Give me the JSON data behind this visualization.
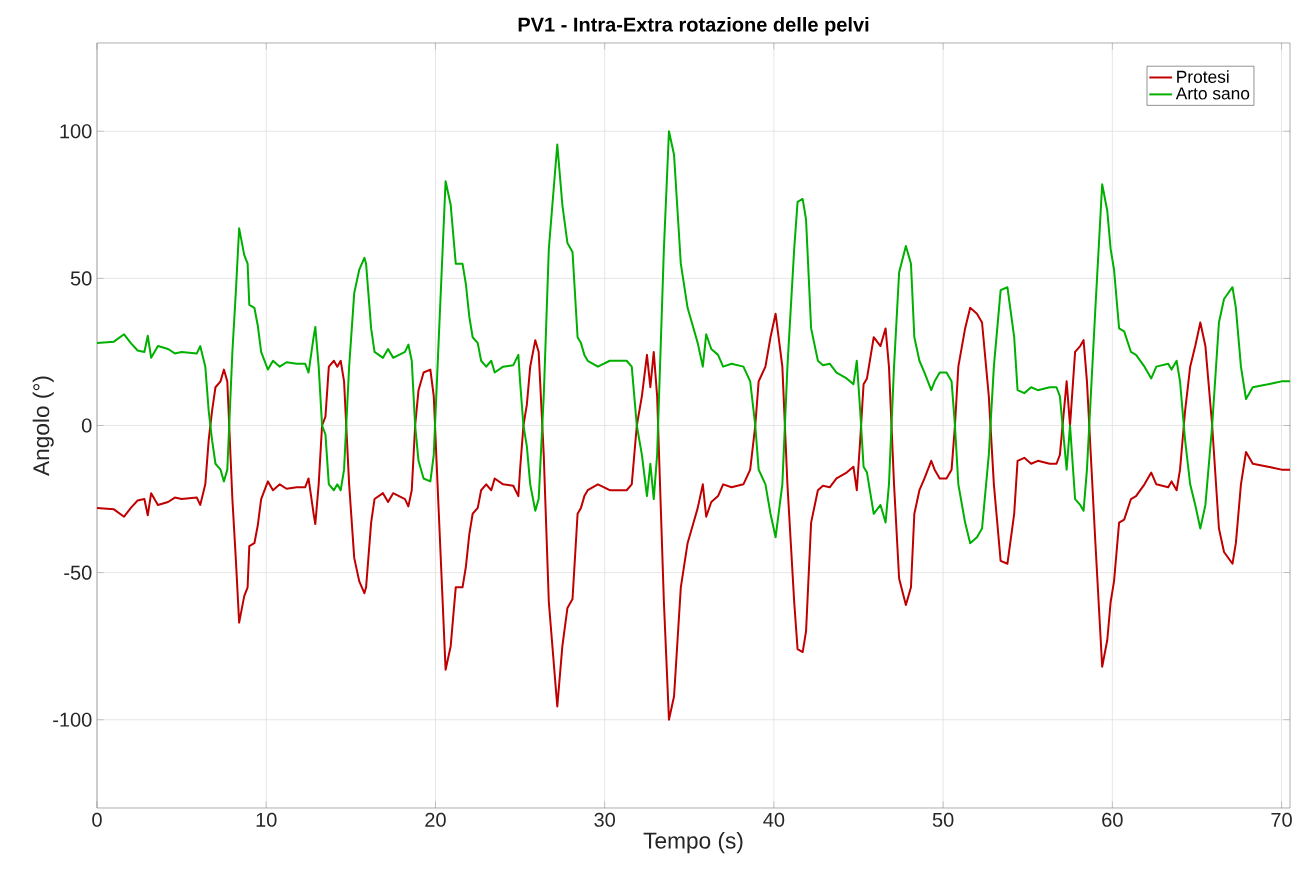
{
  "chart_data": {
    "type": "line",
    "title": "PV1 - Intra-Extra rotazione delle pelvi",
    "xlabel": "Tempo (s)",
    "ylabel": "Angolo (°)",
    "x": [
      0,
      1.0,
      1.6,
      2.0,
      2.4,
      2.8,
      3.0,
      3.2,
      3.6,
      4.2,
      4.6,
      5.0,
      5.9,
      6.1,
      6.4,
      6.6,
      6.8,
      7.0,
      7.3,
      7.5,
      7.7,
      8.0,
      8.2,
      8.4,
      8.7,
      8.9,
      9.0,
      9.3,
      9.5,
      9.7,
      9.9,
      10.1,
      10.4,
      10.8,
      11.2,
      11.8,
      12.3,
      12.5,
      12.8,
      12.9,
      13.1,
      13.3,
      13.5,
      13.7,
      14.0,
      14.2,
      14.4,
      14.6,
      14.9,
      15.2,
      15.5,
      15.8,
      15.9,
      16.2,
      16.4,
      16.9,
      17.2,
      17.5,
      18.2,
      18.4,
      18.6,
      18.8,
      19.0,
      19.3,
      19.7,
      19.9,
      20.2,
      20.6,
      20.9,
      21.2,
      21.6,
      21.8,
      22.0,
      22.2,
      22.5,
      22.7,
      23.0,
      23.3,
      23.5,
      24.0,
      24.6,
      24.9,
      25.0,
      25.2,
      25.4,
      25.6,
      25.9,
      26.1,
      26.4,
      26.7,
      27.2,
      27.5,
      27.8,
      28.1,
      28.4,
      28.6,
      28.8,
      29.0,
      29.6,
      30.3,
      31.3,
      31.6,
      31.9,
      32.2,
      32.5,
      32.7,
      32.9,
      33.1,
      33.5,
      33.8,
      34.1,
      34.5,
      34.9,
      35.1,
      35.5,
      35.8,
      36.0,
      36.3,
      36.7,
      37.0,
      37.5,
      38.2,
      38.6,
      38.9,
      39.1,
      39.5,
      39.8,
      40.1,
      40.5,
      40.8,
      41.2,
      41.4,
      41.7,
      41.9,
      42.2,
      42.6,
      42.9,
      43.3,
      43.7,
      44.3,
      44.7,
      44.9,
      45.1,
      45.3,
      45.5,
      45.9,
      46.3,
      46.6,
      46.8,
      47.1,
      47.4,
      47.8,
      48.1,
      48.3,
      48.6,
      48.9,
      49.3,
      49.5,
      49.8,
      50.2,
      50.5,
      50.7,
      50.9,
      51.3,
      51.6,
      52.0,
      52.3,
      52.7,
      53.0,
      53.4,
      53.8,
      54.2,
      54.4,
      54.8,
      55.2,
      55.6,
      56.3,
      56.7,
      56.9,
      57.3,
      57.5,
      57.8,
      58.1,
      58.3,
      58.5,
      59.0,
      59.4,
      59.7,
      59.9,
      60.1,
      60.4,
      60.7,
      61.1,
      61.4,
      61.9,
      62.3,
      62.6,
      63.3,
      63.5,
      63.8,
      64.0,
      64.3,
      64.6,
      64.9,
      65.2,
      65.5,
      65.9,
      66.3,
      66.6,
      67.1,
      67.3,
      67.6,
      67.9,
      68.3,
      69.2,
      70.0,
      70.5
    ],
    "series": [
      {
        "name": "Protesi",
        "color": "#c00000",
        "values": [
          -28,
          -28.5,
          -31,
          -28,
          -25.5,
          -25,
          -30.5,
          -23,
          -27,
          -26,
          -24.5,
          -25,
          -24.5,
          -27,
          -20,
          -5,
          5,
          13,
          15,
          19,
          15,
          -25,
          -45,
          -67,
          -58,
          -55,
          -41,
          -40,
          -34,
          -25,
          -22,
          -19,
          -22,
          -20,
          -21.5,
          -21,
          -21,
          -18,
          -30,
          -33.5,
          -20,
          0,
          3,
          20,
          22,
          20,
          22,
          15,
          -20,
          -45,
          -53,
          -57,
          -55,
          -33,
          -25,
          -23,
          -26,
          -23,
          -25,
          -27.5,
          -22,
          0,
          12,
          18,
          19,
          10,
          -30,
          -83,
          -75,
          -55,
          -55,
          -48,
          -37,
          -30,
          -28,
          -22,
          -20,
          -22,
          -18,
          -20,
          -20.5,
          -24,
          -15,
          0,
          7,
          20,
          29,
          25,
          -10,
          -60,
          -95.5,
          -75,
          -62,
          -59,
          -30,
          -28,
          -24,
          -22,
          -20,
          -22,
          -22,
          -20,
          0,
          10,
          24,
          13,
          25,
          10,
          -60,
          -100,
          -92,
          -55,
          -40,
          -36,
          -28,
          -20,
          -31,
          -26,
          -24,
          -20,
          -21,
          -20,
          -15,
          0,
          15,
          20,
          30,
          38,
          20,
          -20,
          -60,
          -76,
          -77,
          -70,
          -33,
          -22,
          -20.5,
          -21,
          -18,
          -16,
          -14,
          -22,
          -5,
          14,
          16,
          30,
          27,
          33,
          20,
          -20,
          -52,
          -61,
          -55,
          -30,
          -22,
          -18,
          -12,
          -15,
          -18,
          -18,
          -15,
          0,
          20,
          33,
          40,
          38,
          35,
          10,
          -20,
          -46,
          -47,
          -30,
          -12,
          -11,
          -13,
          -12,
          -13,
          -13,
          -10,
          15,
          0,
          25,
          27,
          29,
          15,
          -40,
          -82,
          -73,
          -60,
          -53,
          -33,
          -32,
          -25,
          -24,
          -20,
          -16,
          -20,
          -21,
          -19,
          -22,
          -15,
          5,
          20,
          27,
          35,
          27,
          0,
          -35,
          -43,
          -47,
          -40,
          -20,
          -9,
          -13,
          -14,
          -15,
          -15
        ]
      },
      {
        "name": "Arto sano",
        "color": "#00b000",
        "values": [
          28,
          28.5,
          31,
          28,
          25.5,
          25,
          30.5,
          23,
          27,
          26,
          24.5,
          25,
          24.5,
          27,
          20,
          5,
          -5,
          -13,
          -15,
          -19,
          -15,
          25,
          45,
          67,
          58,
          55,
          41,
          40,
          34,
          25,
          22,
          19,
          22,
          20,
          21.5,
          21,
          21,
          18,
          30,
          33.5,
          20,
          0,
          -3,
          -20,
          -22,
          -20,
          -22,
          -15,
          20,
          45,
          53,
          57,
          55,
          33,
          25,
          23,
          26,
          23,
          25,
          27.5,
          22,
          0,
          -12,
          -18,
          -19,
          -10,
          30,
          83,
          75,
          55,
          55,
          48,
          37,
          30,
          28,
          22,
          20,
          22,
          18,
          20,
          20.5,
          24,
          15,
          0,
          -7,
          -20,
          -29,
          -25,
          10,
          60,
          95.5,
          75,
          62,
          59,
          30,
          28,
          24,
          22,
          20,
          22,
          22,
          20,
          0,
          -10,
          -24,
          -13,
          -25,
          -10,
          60,
          100,
          92,
          55,
          40,
          36,
          28,
          20,
          31,
          26,
          24,
          20,
          21,
          20,
          15,
          0,
          -15,
          -20,
          -30,
          -38,
          -20,
          20,
          60,
          76,
          77,
          70,
          33,
          22,
          20.5,
          21,
          18,
          16,
          14,
          22,
          5,
          -14,
          -16,
          -30,
          -27,
          -33,
          -20,
          20,
          52,
          61,
          55,
          30,
          22,
          18,
          12,
          15,
          18,
          18,
          15,
          0,
          -20,
          -33,
          -40,
          -38,
          -35,
          -10,
          20,
          46,
          47,
          30,
          12,
          11,
          13,
          12,
          13,
          13,
          10,
          -15,
          0,
          -25,
          -27,
          -29,
          -15,
          40,
          82,
          73,
          60,
          53,
          33,
          32,
          25,
          24,
          20,
          16,
          20,
          21,
          19,
          22,
          15,
          -5,
          -20,
          -27,
          -35,
          -27,
          0,
          35,
          43,
          47,
          40,
          20,
          9,
          13,
          14,
          15,
          15
        ]
      }
    ],
    "xlim": [
      0,
      70.5
    ],
    "ylim": [
      -130,
      130
    ],
    "xticks": [
      0,
      10,
      20,
      30,
      40,
      50,
      60,
      70
    ],
    "yticks": [
      -100,
      -50,
      0,
      50,
      100
    ],
    "grid": true,
    "legend": "top right",
    "line_style": "solid"
  }
}
